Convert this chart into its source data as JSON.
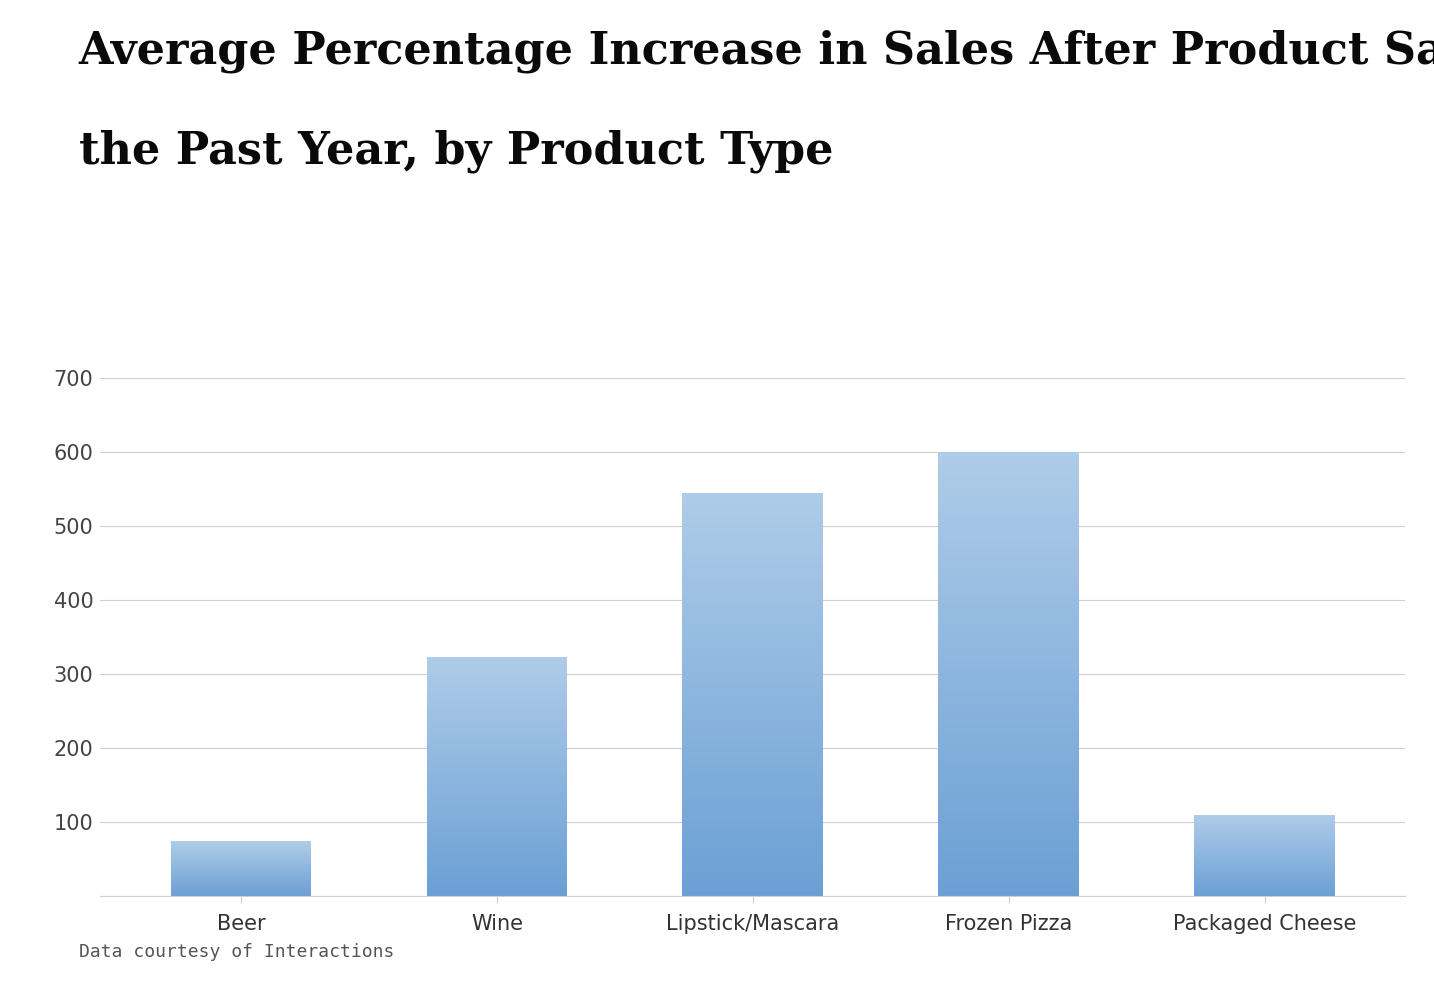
{
  "title_line1": "Average Percentage Increase in Sales After Product Samples in",
  "title_line2": "the Past Year, by Product Type",
  "categories": [
    "Beer",
    "Wine",
    "Lipstick/Mascara",
    "Frozen Pizza",
    "Packaged Cheese"
  ],
  "values": [
    75,
    323,
    545,
    600,
    110
  ],
  "bar_color_top": "#aecce8",
  "bar_color_bottom": "#6b9fd4",
  "ylim": [
    0,
    700
  ],
  "yticks": [
    0,
    100,
    200,
    300,
    400,
    500,
    600,
    700
  ],
  "grid_color": "#d0d0d0",
  "background_color": "#ffffff",
  "title_fontsize": 32,
  "tick_fontsize": 15,
  "xtick_fontsize": 15,
  "footnote": "Data courtesy of Interactions",
  "footnote_fontsize": 13,
  "bar_width": 0.55
}
